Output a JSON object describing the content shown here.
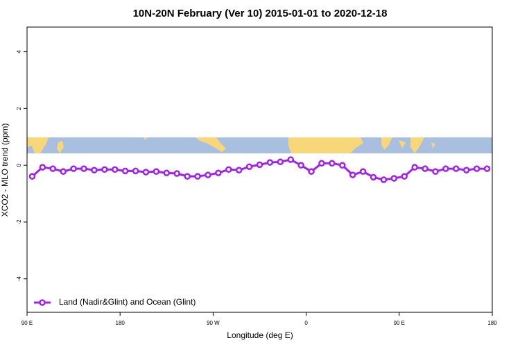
{
  "chart_data": {
    "type": "line",
    "title": "10N-20N February (Ver 10)   2015-01-01 to 2020-12-18",
    "x_label": "Longitude (deg E)",
    "y_label": "XCO2 - MLO trend (ppm)",
    "xlim": [
      90,
      540
    ],
    "xticks": [
      {
        "value": 90,
        "label": "90 E"
      },
      {
        "value": 180,
        "label": "180"
      },
      {
        "value": 270,
        "label": "90 W"
      },
      {
        "value": 360,
        "label": "0"
      },
      {
        "value": 450,
        "label": "90 E"
      },
      {
        "value": 540,
        "label": "180"
      }
    ],
    "ylim": [
      -5.18,
      4.87
    ],
    "yticks": [
      -4,
      -2,
      0,
      2,
      4
    ],
    "legend": "bottom-left",
    "x": [
      95,
      105,
      115,
      125,
      135,
      145,
      155,
      165,
      175,
      185,
      195,
      205,
      215,
      225,
      235,
      245,
      255,
      265,
      275,
      285,
      295,
      305,
      315,
      325,
      335,
      345,
      355,
      365,
      375,
      385,
      395,
      405,
      415,
      425,
      435,
      445,
      455,
      465,
      475,
      485,
      495,
      505,
      515,
      525,
      535
    ],
    "series": [
      {
        "name": "Land (Nadir&Glint) and Ocean (Glint)",
        "color": "#a020f0",
        "values": [
          -0.39,
          -0.07,
          -0.12,
          -0.22,
          -0.12,
          -0.12,
          -0.17,
          -0.15,
          -0.15,
          -0.2,
          -0.2,
          -0.24,
          -0.22,
          -0.27,
          -0.29,
          -0.39,
          -0.39,
          -0.34,
          -0.27,
          -0.15,
          -0.17,
          -0.05,
          0.02,
          0.1,
          0.12,
          0.2,
          0,
          -0.22,
          0.07,
          0.07,
          0,
          -0.34,
          -0.22,
          -0.42,
          -0.51,
          -0.46,
          -0.39,
          -0.07,
          -0.12,
          -0.22,
          -0.12,
          -0.12,
          -0.17,
          -0.12,
          -0.12
        ]
      }
    ]
  }
}
